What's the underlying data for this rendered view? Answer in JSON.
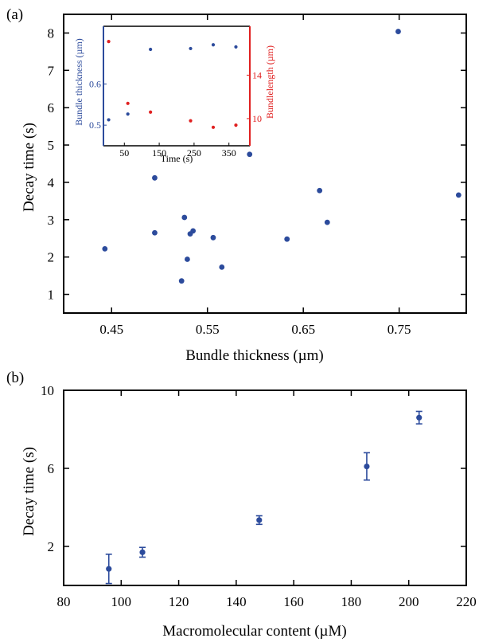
{
  "colors": {
    "blue": "#2c4b9c",
    "red": "#e02020",
    "black": "#000000"
  },
  "chart_data": [
    {
      "panel_label": "(a)",
      "type": "scatter",
      "xlabel": "Bundle thickness (µm)",
      "ylabel": "Decay time (s)",
      "xlim": [
        0.4,
        0.82
      ],
      "ylim": [
        0.5,
        8.5
      ],
      "xticks": [
        0.45,
        0.55,
        0.65,
        0.75
      ],
      "xtick_labels": [
        "0.45",
        "0.55",
        "0.65",
        "0.75"
      ],
      "yticks": [
        1,
        2,
        3,
        4,
        5,
        6,
        7,
        8
      ],
      "ytick_labels": [
        "1",
        "2",
        "3",
        "4",
        "5",
        "6",
        "7",
        "8"
      ],
      "grid": false,
      "series": [
        {
          "color": "#2c4b9c",
          "points": [
            [
              0.443,
              2.22
            ],
            [
              0.495,
              4.12
            ],
            [
              0.495,
              2.65
            ],
            [
              0.523,
              1.36
            ],
            [
              0.526,
              3.06
            ],
            [
              0.529,
              1.94
            ],
            [
              0.532,
              2.62
            ],
            [
              0.535,
              2.7
            ],
            [
              0.556,
              2.52
            ],
            [
              0.565,
              1.73
            ],
            [
              0.594,
              4.75
            ],
            [
              0.633,
              2.48
            ],
            [
              0.667,
              3.78
            ],
            [
              0.675,
              2.93
            ],
            [
              0.749,
              8.04
            ],
            [
              0.812,
              3.66
            ]
          ]
        }
      ]
    },
    {
      "panel_label": "inset",
      "type": "scatter",
      "xlabel": "Time (s)",
      "ylabel_left": "Bundle thickness (µm)",
      "ylabel_right": "Bundlelength (µm)",
      "xlim": [
        -10,
        410
      ],
      "xticks": [
        50,
        150,
        250,
        350
      ],
      "xtick_labels": [
        "50",
        "150",
        "250",
        "350"
      ],
      "ylim_left": [
        0.45,
        0.74
      ],
      "yticks_left": [
        0.5,
        0.6
      ],
      "ytick_labels_left": [
        "0.5",
        "0.6"
      ],
      "ylim_right": [
        7.5,
        18.5
      ],
      "yticks_right": [
        10,
        14
      ],
      "ytick_labels_right": [
        "10",
        "14"
      ],
      "series": [
        {
          "name": "Bundle thickness",
          "axis": "left",
          "color": "#2c4b9c",
          "points": [
            [
              5,
              0.513
            ],
            [
              60,
              0.527
            ],
            [
              125,
              0.684
            ],
            [
              240,
              0.686
            ],
            [
              305,
              0.695
            ],
            [
              370,
              0.69
            ]
          ]
        },
        {
          "name": "Bundlelength",
          "axis": "right",
          "color": "#e02020",
          "points": [
            [
              5,
              17.1
            ],
            [
              60,
              11.4
            ],
            [
              125,
              10.6
            ],
            [
              240,
              9.8
            ],
            [
              305,
              9.2
            ],
            [
              370,
              9.4
            ]
          ]
        }
      ]
    },
    {
      "panel_label": "(b)",
      "type": "scatter",
      "xlabel": "Macromolecular content (µM)",
      "ylabel": "Decay time (s)",
      "xlim": [
        80,
        220
      ],
      "ylim": [
        0,
        10
      ],
      "xticks": [
        80,
        100,
        120,
        140,
        160,
        180,
        200,
        220
      ],
      "xtick_labels": [
        "80",
        "100",
        "120",
        "140",
        "160",
        "180",
        "200",
        "220"
      ],
      "yticks": [
        2,
        6,
        10
      ],
      "ytick_labels": [
        "2",
        "6",
        "10"
      ],
      "grid": false,
      "series": [
        {
          "color": "#2c4b9c",
          "points": [
            {
              "x": 95.7,
              "y": 0.85,
              "err": 0.75
            },
            {
              "x": 107.4,
              "y": 1.7,
              "err": 0.25
            },
            {
              "x": 148.0,
              "y": 3.35,
              "err": 0.22
            },
            {
              "x": 185.4,
              "y": 6.1,
              "err": 0.7
            },
            {
              "x": 203.6,
              "y": 8.6,
              "err": 0.32
            }
          ]
        }
      ]
    }
  ]
}
